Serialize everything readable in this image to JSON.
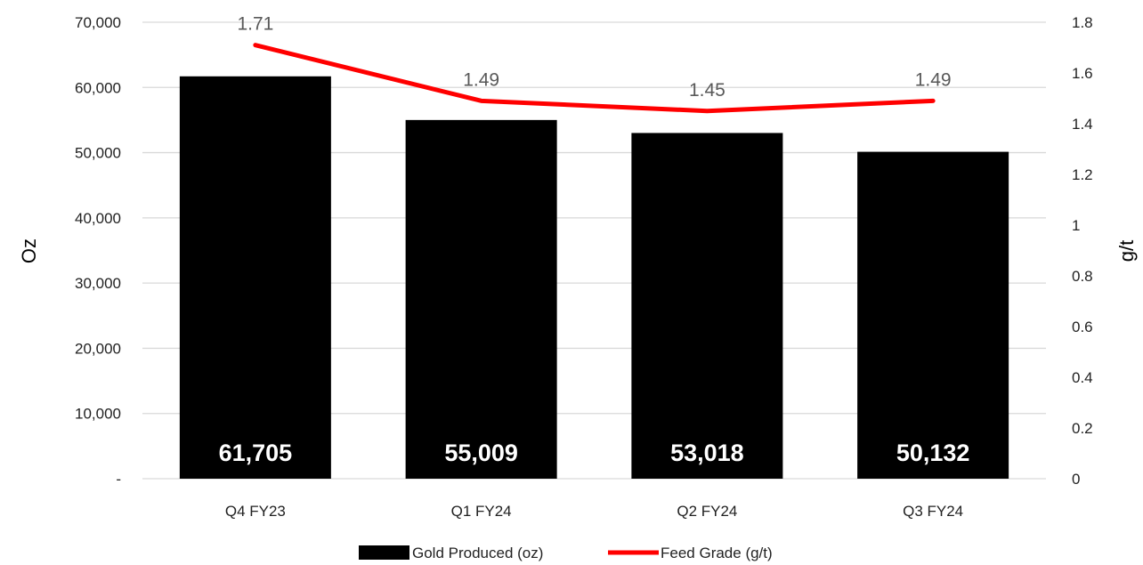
{
  "chart_data": {
    "type": "bar",
    "categories": [
      "Q4 FY23",
      "Q1 FY24",
      "Q2 FY24",
      "Q3 FY24"
    ],
    "series": [
      {
        "name": "Gold Produced (oz)",
        "type": "bar",
        "axis": "left",
        "values": [
          61705,
          55009,
          53018,
          50132
        ],
        "labels": [
          "61,705",
          "55,009",
          "53,018",
          "50,132"
        ],
        "color": "#000000"
      },
      {
        "name": "Feed Grade (g/t)",
        "type": "line",
        "axis": "right",
        "values": [
          1.71,
          1.49,
          1.45,
          1.49
        ],
        "labels": [
          "1.71",
          "1.49",
          "1.45",
          "1.49"
        ],
        "color": "#ff0000"
      }
    ],
    "ylabel": "Oz",
    "y2label": "g/t",
    "ylim": [
      0,
      70000
    ],
    "y2lim": [
      0,
      1.8
    ],
    "yticks": [
      {
        "value": 0,
        "label": "-"
      },
      {
        "value": 10000,
        "label": "10,000"
      },
      {
        "value": 20000,
        "label": "20,000"
      },
      {
        "value": 30000,
        "label": "30,000"
      },
      {
        "value": 40000,
        "label": "40,000"
      },
      {
        "value": 50000,
        "label": "50,000"
      },
      {
        "value": 60000,
        "label": "60,000"
      },
      {
        "value": 70000,
        "label": "70,000"
      }
    ],
    "y2ticks": [
      {
        "value": 0,
        "label": "0"
      },
      {
        "value": 0.2,
        "label": "0.2"
      },
      {
        "value": 0.4,
        "label": "0.4"
      },
      {
        "value": 0.6,
        "label": "0.6"
      },
      {
        "value": 0.8,
        "label": "0.8"
      },
      {
        "value": 1,
        "label": "1"
      },
      {
        "value": 1.2,
        "label": "1.2"
      },
      {
        "value": 1.4,
        "label": "1.4"
      },
      {
        "value": 1.6,
        "label": "1.6"
      },
      {
        "value": 1.8,
        "label": "1.8"
      }
    ],
    "grid": true,
    "gridColor": "#d9d9d9",
    "legend": "bottom"
  }
}
